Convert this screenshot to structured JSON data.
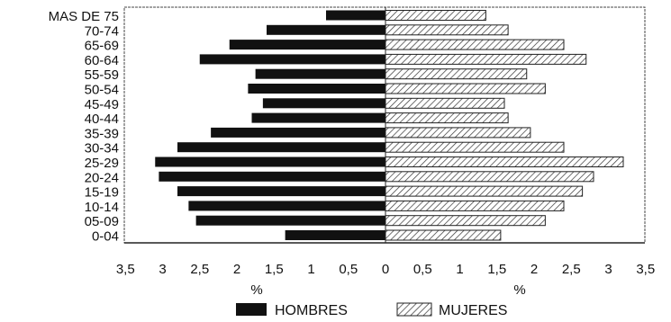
{
  "chart_data": {
    "type": "bar",
    "orientation": "horizontal",
    "categories": [
      "MAS DE 75",
      "70-74",
      "65-69",
      "60-64",
      "55-59",
      "50-54",
      "45-49",
      "40-44",
      "35-39",
      "30-34",
      "25-29",
      "20-24",
      "15-19",
      "10-14",
      "05-09",
      "0-04"
    ],
    "series": [
      {
        "name": "HOMBRES",
        "values": [
          0.8,
          1.6,
          2.1,
          2.5,
          1.75,
          1.85,
          1.65,
          1.8,
          2.35,
          2.8,
          3.1,
          3.05,
          2.8,
          2.65,
          2.55,
          1.35
        ]
      },
      {
        "name": "MUJERES",
        "values": [
          1.35,
          1.65,
          2.4,
          2.7,
          1.9,
          2.15,
          1.6,
          1.65,
          1.95,
          2.4,
          3.2,
          2.8,
          2.65,
          2.4,
          2.15,
          1.55
        ]
      }
    ],
    "x_ticks_left": [
      "3,5",
      "3",
      "2,5",
      "2",
      "1,5",
      "1",
      "0,5",
      "0"
    ],
    "x_ticks_right": [
      "0,5",
      "1",
      "1,5",
      "2",
      "2,5",
      "3",
      "3,5"
    ],
    "xlabel_left": "%",
    "xlabel_right": "%",
    "xlim": [
      0,
      3.5
    ],
    "legend_position": "bottom",
    "grid": false,
    "colors": {
      "hombres": "#111111",
      "mujeres_hatch": "#333333",
      "axis": "#222222"
    }
  }
}
